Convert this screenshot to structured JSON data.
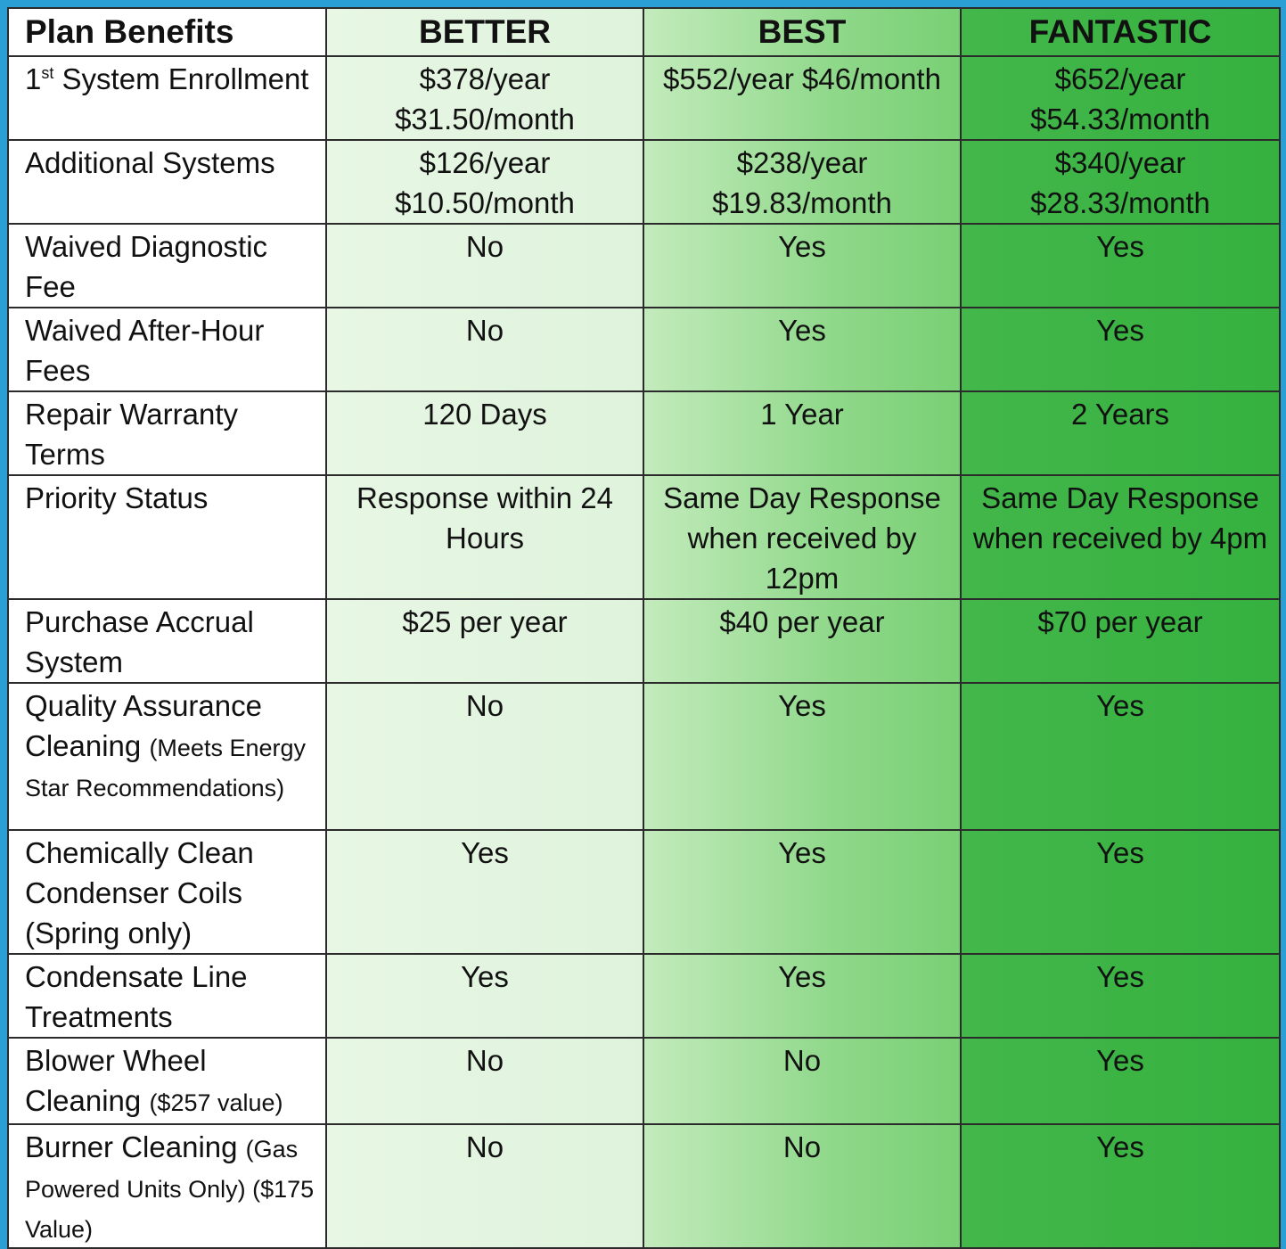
{
  "header": {
    "label": "Plan Benefits",
    "plans": [
      "BETTER",
      "BEST",
      "FANTASTIC"
    ]
  },
  "rows": [
    {
      "label_parts": [
        "1",
        "st",
        " System Enrollment"
      ],
      "better": "$378/year $31.50/month",
      "best": "$552/year $46/month",
      "fantastic": "$652/year $54.33/month"
    },
    {
      "label": "Additional Systems",
      "better": "$126/year $10.50/month",
      "best": "$238/year $19.83/month",
      "fantastic": "$340/year $28.33/month"
    },
    {
      "label": "Waived Diagnostic Fee",
      "better": "No",
      "best": "Yes",
      "fantastic": "Yes"
    },
    {
      "label": "Waived After-Hour Fees",
      "better": "No",
      "best": "Yes",
      "fantastic": "Yes"
    },
    {
      "label": "Repair Warranty Terms",
      "better": "120 Days",
      "best": "1 Year",
      "fantastic": "2 Years"
    },
    {
      "label": "Priority Status",
      "better": "Response within 24 Hours",
      "best": "Same Day Response when received by 12pm",
      "fantastic": "Same Day Response when received by 4pm"
    },
    {
      "label": "Purchase Accrual System",
      "better": "$25 per year",
      "best": "$40 per year",
      "fantastic": "$70 per year"
    },
    {
      "label": "Quality Assurance Cleaning",
      "note": "(Meets Energy Star Recommendations)",
      "better": "No",
      "best": "Yes",
      "fantastic": "Yes"
    },
    {
      "label": "Chemically Clean Condenser Coils (Spring only)",
      "better": "Yes",
      "best": "Yes",
      "fantastic": "Yes"
    },
    {
      "label": "Condensate Line Treatments",
      "better": "Yes",
      "best": "Yes",
      "fantastic": "Yes"
    },
    {
      "label": "Blower Wheel Cleaning",
      "note": "($257 value)",
      "better": "No",
      "best": "No",
      "fantastic": "Yes"
    },
    {
      "label": "Burner Cleaning",
      "note": "(Gas Powered Units Only) ($175 Value)",
      "better": "No",
      "best": "No",
      "fantastic": "Yes"
    }
  ],
  "colors": {
    "background": "#2a9fd6",
    "better": "#e3f5e0",
    "best": "#8fd88a",
    "fantastic": "#3bb444",
    "border": "#2b2b2b"
  }
}
